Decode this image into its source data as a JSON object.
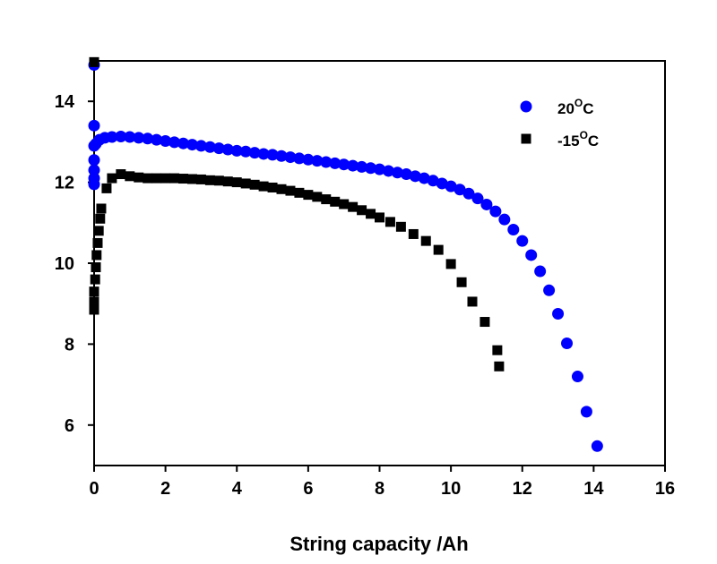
{
  "chart_data": {
    "type": "scatter",
    "title": "",
    "xlabel": "String capacity /Ah",
    "ylabel": "",
    "xlim": [
      0,
      16
    ],
    "ylim": [
      5,
      15
    ],
    "x_ticks": [
      "0",
      "2",
      "4",
      "6",
      "8",
      "10",
      "12",
      "14",
      "16"
    ],
    "y_ticks": [
      "6",
      "8",
      "10",
      "12",
      "14"
    ],
    "x_tick_values": [
      0,
      2,
      4,
      6,
      8,
      10,
      12,
      14,
      16
    ],
    "y_tick_values": [
      6,
      8,
      10,
      12,
      14
    ],
    "grid": false,
    "legend_position": "top-right",
    "series": [
      {
        "name": "20°C",
        "label_main": "20",
        "label_sup": "O",
        "label_tail": "C",
        "marker": "circle",
        "color": "#0000ff",
        "points": [
          [
            0.0,
            14.9
          ],
          [
            0.0,
            13.4
          ],
          [
            0.0,
            12.9
          ],
          [
            0.0,
            12.55
          ],
          [
            0.0,
            12.3
          ],
          [
            0.0,
            12.1
          ],
          [
            0.0,
            11.95
          ],
          [
            0.05,
            12.95
          ],
          [
            0.15,
            13.05
          ],
          [
            0.3,
            13.1
          ],
          [
            0.5,
            13.12
          ],
          [
            0.75,
            13.13
          ],
          [
            1.0,
            13.12
          ],
          [
            1.25,
            13.1
          ],
          [
            1.5,
            13.08
          ],
          [
            1.75,
            13.05
          ],
          [
            2.0,
            13.02
          ],
          [
            2.25,
            12.99
          ],
          [
            2.5,
            12.96
          ],
          [
            2.75,
            12.93
          ],
          [
            3.0,
            12.9
          ],
          [
            3.25,
            12.87
          ],
          [
            3.5,
            12.84
          ],
          [
            3.75,
            12.81
          ],
          [
            4.0,
            12.78
          ],
          [
            4.25,
            12.76
          ],
          [
            4.5,
            12.73
          ],
          [
            4.75,
            12.7
          ],
          [
            5.0,
            12.68
          ],
          [
            5.25,
            12.65
          ],
          [
            5.5,
            12.62
          ],
          [
            5.75,
            12.59
          ],
          [
            6.0,
            12.56
          ],
          [
            6.25,
            12.53
          ],
          [
            6.5,
            12.5
          ],
          [
            6.75,
            12.47
          ],
          [
            7.0,
            12.44
          ],
          [
            7.25,
            12.41
          ],
          [
            7.5,
            12.38
          ],
          [
            7.75,
            12.35
          ],
          [
            8.0,
            12.32
          ],
          [
            8.25,
            12.28
          ],
          [
            8.5,
            12.24
          ],
          [
            8.75,
            12.2
          ],
          [
            9.0,
            12.15
          ],
          [
            9.25,
            12.1
          ],
          [
            9.5,
            12.04
          ],
          [
            9.75,
            11.97
          ],
          [
            10.0,
            11.9
          ],
          [
            10.25,
            11.82
          ],
          [
            10.5,
            11.72
          ],
          [
            10.75,
            11.6
          ],
          [
            11.0,
            11.45
          ],
          [
            11.25,
            11.28
          ],
          [
            11.5,
            11.08
          ],
          [
            11.75,
            10.83
          ],
          [
            12.0,
            10.55
          ],
          [
            12.25,
            10.2
          ],
          [
            12.5,
            9.8
          ],
          [
            12.75,
            9.33
          ],
          [
            13.0,
            8.75
          ],
          [
            13.25,
            8.02
          ],
          [
            13.55,
            7.2
          ],
          [
            13.8,
            6.33
          ],
          [
            14.1,
            5.48
          ]
        ]
      },
      {
        "name": "-15°C",
        "label_main": "-15",
        "label_sup": "O",
        "label_tail": "C",
        "marker": "square",
        "color": "#000000",
        "points": [
          [
            0.0,
            14.97
          ],
          [
            0.0,
            8.85
          ],
          [
            0.0,
            9.05
          ],
          [
            0.0,
            9.3
          ],
          [
            0.03,
            9.6
          ],
          [
            0.05,
            9.9
          ],
          [
            0.07,
            10.2
          ],
          [
            0.1,
            10.5
          ],
          [
            0.13,
            10.8
          ],
          [
            0.17,
            11.1
          ],
          [
            0.2,
            11.35
          ],
          [
            0.35,
            11.85
          ],
          [
            0.5,
            12.1
          ],
          [
            0.75,
            12.2
          ],
          [
            1.0,
            12.15
          ],
          [
            1.25,
            12.12
          ],
          [
            1.5,
            12.1
          ],
          [
            1.75,
            12.1
          ],
          [
            2.0,
            12.1
          ],
          [
            2.25,
            12.1
          ],
          [
            2.5,
            12.09
          ],
          [
            2.75,
            12.08
          ],
          [
            3.0,
            12.07
          ],
          [
            3.25,
            12.05
          ],
          [
            3.5,
            12.04
          ],
          [
            3.75,
            12.02
          ],
          [
            4.0,
            12.0
          ],
          [
            4.25,
            11.97
          ],
          [
            4.5,
            11.94
          ],
          [
            4.75,
            11.9
          ],
          [
            5.0,
            11.87
          ],
          [
            5.25,
            11.83
          ],
          [
            5.5,
            11.79
          ],
          [
            5.75,
            11.74
          ],
          [
            6.0,
            11.69
          ],
          [
            6.25,
            11.64
          ],
          [
            6.5,
            11.58
          ],
          [
            6.75,
            11.52
          ],
          [
            7.0,
            11.46
          ],
          [
            7.25,
            11.39
          ],
          [
            7.5,
            11.31
          ],
          [
            7.75,
            11.22
          ],
          [
            8.0,
            11.13
          ],
          [
            8.3,
            11.02
          ],
          [
            8.6,
            10.9
          ],
          [
            8.95,
            10.72
          ],
          [
            9.3,
            10.55
          ],
          [
            9.65,
            10.33
          ],
          [
            10.0,
            9.98
          ],
          [
            10.3,
            9.53
          ],
          [
            10.6,
            9.05
          ],
          [
            10.95,
            8.55
          ],
          [
            11.3,
            7.85
          ],
          [
            11.35,
            7.45
          ]
        ]
      }
    ]
  }
}
